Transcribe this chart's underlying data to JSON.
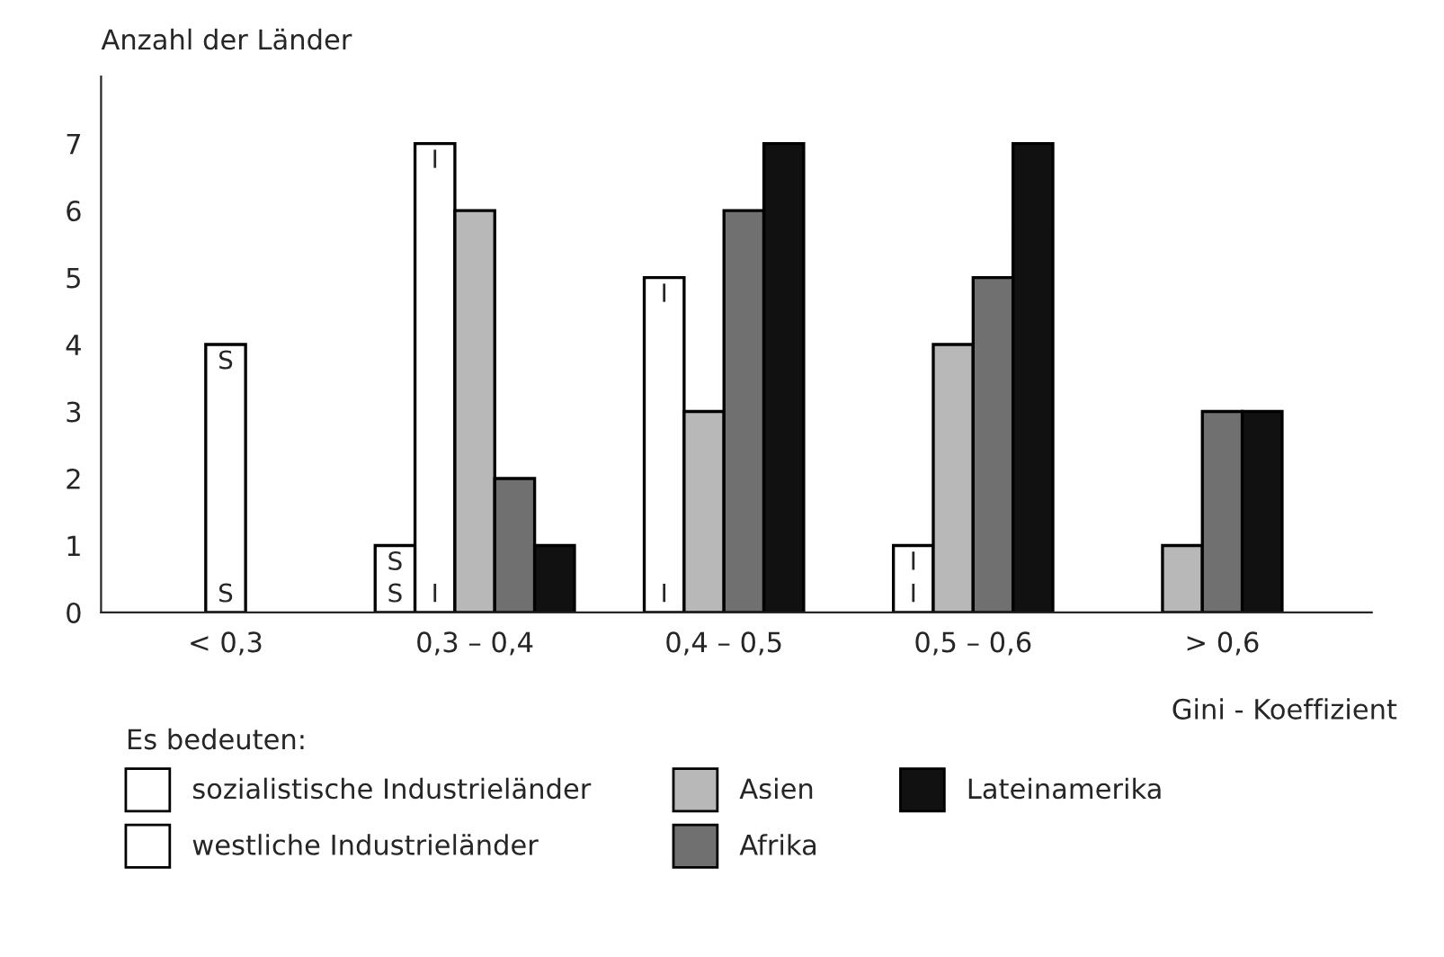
{
  "chart_data": {
    "type": "bar",
    "ylabel": "Anzahl der Länder",
    "xlabel": "Gini - Koeffizient",
    "legend_title": "Es bedeuten:",
    "categories": [
      "< 0,3",
      "0,3 – 0,4",
      "0,4 – 0,5",
      "0,5 – 0,6",
      "> 0,6"
    ],
    "series": [
      {
        "name": "sozialistische Industrieländer",
        "color": "#ffffff",
        "values": [
          4,
          1,
          null,
          null,
          null
        ]
      },
      {
        "name": "westliche Industrieländer",
        "color": "#ffffff",
        "values": [
          null,
          7,
          5,
          1,
          null
        ]
      },
      {
        "name": "Asien",
        "color": "#b8b8b8",
        "values": [
          null,
          6,
          3,
          4,
          1
        ]
      },
      {
        "name": "Afrika",
        "color": "#707070",
        "values": [
          null,
          2,
          6,
          5,
          3
        ]
      },
      {
        "name": "Lateinamerika",
        "color": "#111111",
        "values": [
          null,
          1,
          7,
          7,
          3
        ]
      }
    ],
    "annotations": [
      "S",
      "I"
    ],
    "ylim": [
      0,
      8
    ],
    "yticks": [
      0,
      1,
      2,
      3,
      4,
      5,
      6,
      7
    ],
    "grid": false,
    "legend": "bottom"
  }
}
